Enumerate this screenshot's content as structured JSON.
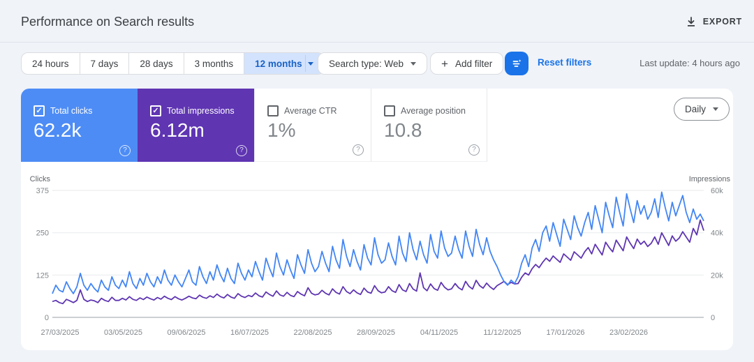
{
  "header": {
    "title": "Performance on Search results",
    "export_label": "EXPORT"
  },
  "filters": {
    "date_ranges": [
      "24 hours",
      "7 days",
      "28 days",
      "3 months",
      "12 months"
    ],
    "selected_range": "12 months",
    "search_type_label": "Search type: Web",
    "add_filter_label": "Add filter",
    "reset_label": "Reset filters",
    "last_update": "Last update: 4 hours ago"
  },
  "metrics": {
    "granularity": "Daily",
    "cards": [
      {
        "label": "Total clicks",
        "value": "62.2k",
        "checked": true,
        "color": "#4d8cf5"
      },
      {
        "label": "Total impressions",
        "value": "6.12m",
        "checked": true,
        "color": "#5f35b2"
      },
      {
        "label": "Average CTR",
        "value": "1%",
        "checked": false,
        "color": null
      },
      {
        "label": "Average position",
        "value": "10.8",
        "checked": false,
        "color": null
      }
    ]
  },
  "chart_data": {
    "type": "line",
    "grid": true,
    "legend": "none",
    "x_labels": [
      "27/03/2025",
      "03/05/2025",
      "09/06/2025",
      "16/07/2025",
      "22/08/2025",
      "28/09/2025",
      "04/11/2025",
      "11/12/2025",
      "17/01/2026",
      "23/02/2026"
    ],
    "left_axis": {
      "title": "Clicks",
      "ticks": [
        "375",
        "250",
        "125",
        "0"
      ],
      "max": 375,
      "min": 0
    },
    "right_axis": {
      "title": "Impressions",
      "ticks": [
        "60k",
        "40k",
        "20k",
        "0"
      ],
      "max": 60000,
      "min": 0
    },
    "series": [
      {
        "name": "Total clicks",
        "axis": "left",
        "color": "#4285f4",
        "values": [
          70,
          95,
          80,
          75,
          105,
          85,
          70,
          90,
          130,
          95,
          80,
          100,
          85,
          75,
          110,
          90,
          80,
          120,
          95,
          85,
          110,
          90,
          135,
          100,
          85,
          115,
          95,
          130,
          105,
          90,
          120,
          100,
          140,
          110,
          95,
          125,
          105,
          90,
          115,
          140,
          105,
          95,
          150,
          120,
          100,
          135,
          110,
          155,
          125,
          105,
          145,
          115,
          100,
          160,
          130,
          110,
          140,
          120,
          165,
          135,
          110,
          175,
          145,
          120,
          190,
          150,
          125,
          170,
          140,
          115,
          185,
          155,
          130,
          200,
          160,
          135,
          150,
          195,
          160,
          135,
          210,
          170,
          145,
          230,
          180,
          150,
          200,
          165,
          140,
          215,
          175,
          155,
          235,
          185,
          160,
          170,
          220,
          180,
          155,
          240,
          190,
          165,
          250,
          200,
          170,
          225,
          185,
          160,
          245,
          195,
          175,
          255,
          205,
          180,
          190,
          240,
          200,
          175,
          255,
          210,
          180,
          260,
          215,
          185,
          235,
          195,
          170,
          150,
          125,
          105,
          95,
          110,
          100,
          120,
          160,
          185,
          150,
          205,
          230,
          195,
          250,
          270,
          225,
          280,
          245,
          210,
          290,
          260,
          230,
          300,
          265,
          240,
          280,
          310,
          260,
          330,
          290,
          250,
          340,
          300,
          265,
          355,
          310,
          270,
          365,
          320,
          280,
          345,
          305,
          330,
          290,
          310,
          350,
          295,
          370,
          325,
          285,
          340,
          300,
          330,
          360,
          310,
          280,
          320,
          290,
          305,
          285
        ]
      },
      {
        "name": "Total impressions",
        "axis": "right",
        "color": "#5e35b1",
        "values": [
          7500,
          8000,
          7000,
          6500,
          8500,
          7800,
          7000,
          8000,
          13000,
          8500,
          7500,
          8200,
          7800,
          7000,
          9000,
          8000,
          7500,
          9500,
          8000,
          8000,
          9000,
          8200,
          9800,
          8500,
          8000,
          9200,
          8400,
          9600,
          8800,
          8200,
          9400,
          8600,
          10000,
          9000,
          8400,
          9800,
          8800,
          8200,
          9000,
          10000,
          9200,
          8800,
          10500,
          9500,
          9000,
          10200,
          9400,
          11000,
          9800,
          9200,
          10800,
          9600,
          9000,
          11200,
          10000,
          9400,
          10400,
          9800,
          11500,
          10200,
          9600,
          12000,
          10800,
          10000,
          12500,
          10600,
          10000,
          11800,
          10400,
          9800,
          12200,
          11000,
          10200,
          14000,
          11400,
          10600,
          11000,
          12800,
          11400,
          10600,
          13500,
          11800,
          11000,
          14500,
          12200,
          11200,
          13000,
          11600,
          10800,
          13800,
          12000,
          11400,
          15000,
          12600,
          11600,
          12000,
          14500,
          12600,
          11800,
          15500,
          13000,
          12200,
          16000,
          13400,
          12400,
          21000,
          14000,
          12600,
          15800,
          13600,
          12800,
          16500,
          14200,
          13000,
          13500,
          16000,
          14000,
          13000,
          17000,
          14600,
          13400,
          17500,
          15000,
          13800,
          16200,
          14400,
          13200,
          15000,
          16000,
          17000,
          15500,
          16500,
          15800,
          16000,
          19000,
          21000,
          20000,
          23000,
          25000,
          23500,
          26000,
          28000,
          26500,
          29000,
          27500,
          26000,
          30000,
          28500,
          27000,
          31000,
          29500,
          28000,
          31000,
          33000,
          30000,
          34500,
          32000,
          29500,
          35500,
          33000,
          31000,
          36500,
          34000,
          31500,
          38000,
          35000,
          32500,
          37000,
          34500,
          36000,
          33500,
          35000,
          38000,
          34500,
          40000,
          37000,
          34000,
          38500,
          36000,
          37500,
          40500,
          38000,
          35500,
          42000,
          39000,
          46000,
          41000
        ]
      }
    ]
  }
}
